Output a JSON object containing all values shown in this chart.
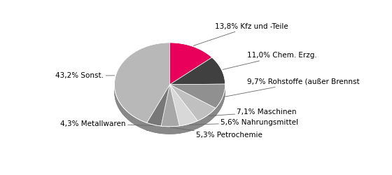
{
  "slices": [
    {
      "label": "13,8% Kfz und -Teile",
      "value": 13.8,
      "color": "#e8005a"
    },
    {
      "label": "11,0% Chem. Erzg.",
      "value": 11.0,
      "color": "#404040"
    },
    {
      "label": "9,7% Rohstoffe (außer Brennst",
      "value": 9.7,
      "color": "#909090"
    },
    {
      "label": "7,1% Maschinen",
      "value": 7.1,
      "color": "#c0c0c0"
    },
    {
      "label": "5,6% Nahrungsmittel",
      "value": 5.6,
      "color": "#d8d8d8"
    },
    {
      "label": "5,3% Petrochemie",
      "value": 5.3,
      "color": "#a8a8a8"
    },
    {
      "label": "4,3% Metallwaren",
      "value": 4.3,
      "color": "#787878"
    },
    {
      "label": "43,2% Sonst.",
      "value": 43.2,
      "color": "#b8b8b8"
    }
  ],
  "startangle": 90,
  "background_color": "#ffffff",
  "font_size": 7.5,
  "label_data": [
    {
      "label": "13,8% Kfz und -Teile",
      "xt": 0.62,
      "yt": 1.05,
      "ha": "left"
    },
    {
      "label": "11,0% Chem. Erzg.",
      "xt": 1.18,
      "yt": 0.55,
      "ha": "left"
    },
    {
      "label": "9,7% Rohstoffe (außer Brennst",
      "xt": 1.18,
      "yt": 0.1,
      "ha": "left"
    },
    {
      "label": "7,1% Maschinen",
      "xt": 1.0,
      "yt": -0.42,
      "ha": "left"
    },
    {
      "label": "5,6% Nahrungsmittel",
      "xt": 0.72,
      "yt": -0.6,
      "ha": "left"
    },
    {
      "label": "5,3% Petrochemie",
      "xt": 0.3,
      "yt": -0.82,
      "ha": "left"
    },
    {
      "label": "4,3% Metallwaren",
      "xt": -0.9,
      "yt": -0.62,
      "ha": "right"
    },
    {
      "label": "43,2% Sonst.",
      "xt": -1.28,
      "yt": 0.2,
      "ha": "right"
    }
  ]
}
